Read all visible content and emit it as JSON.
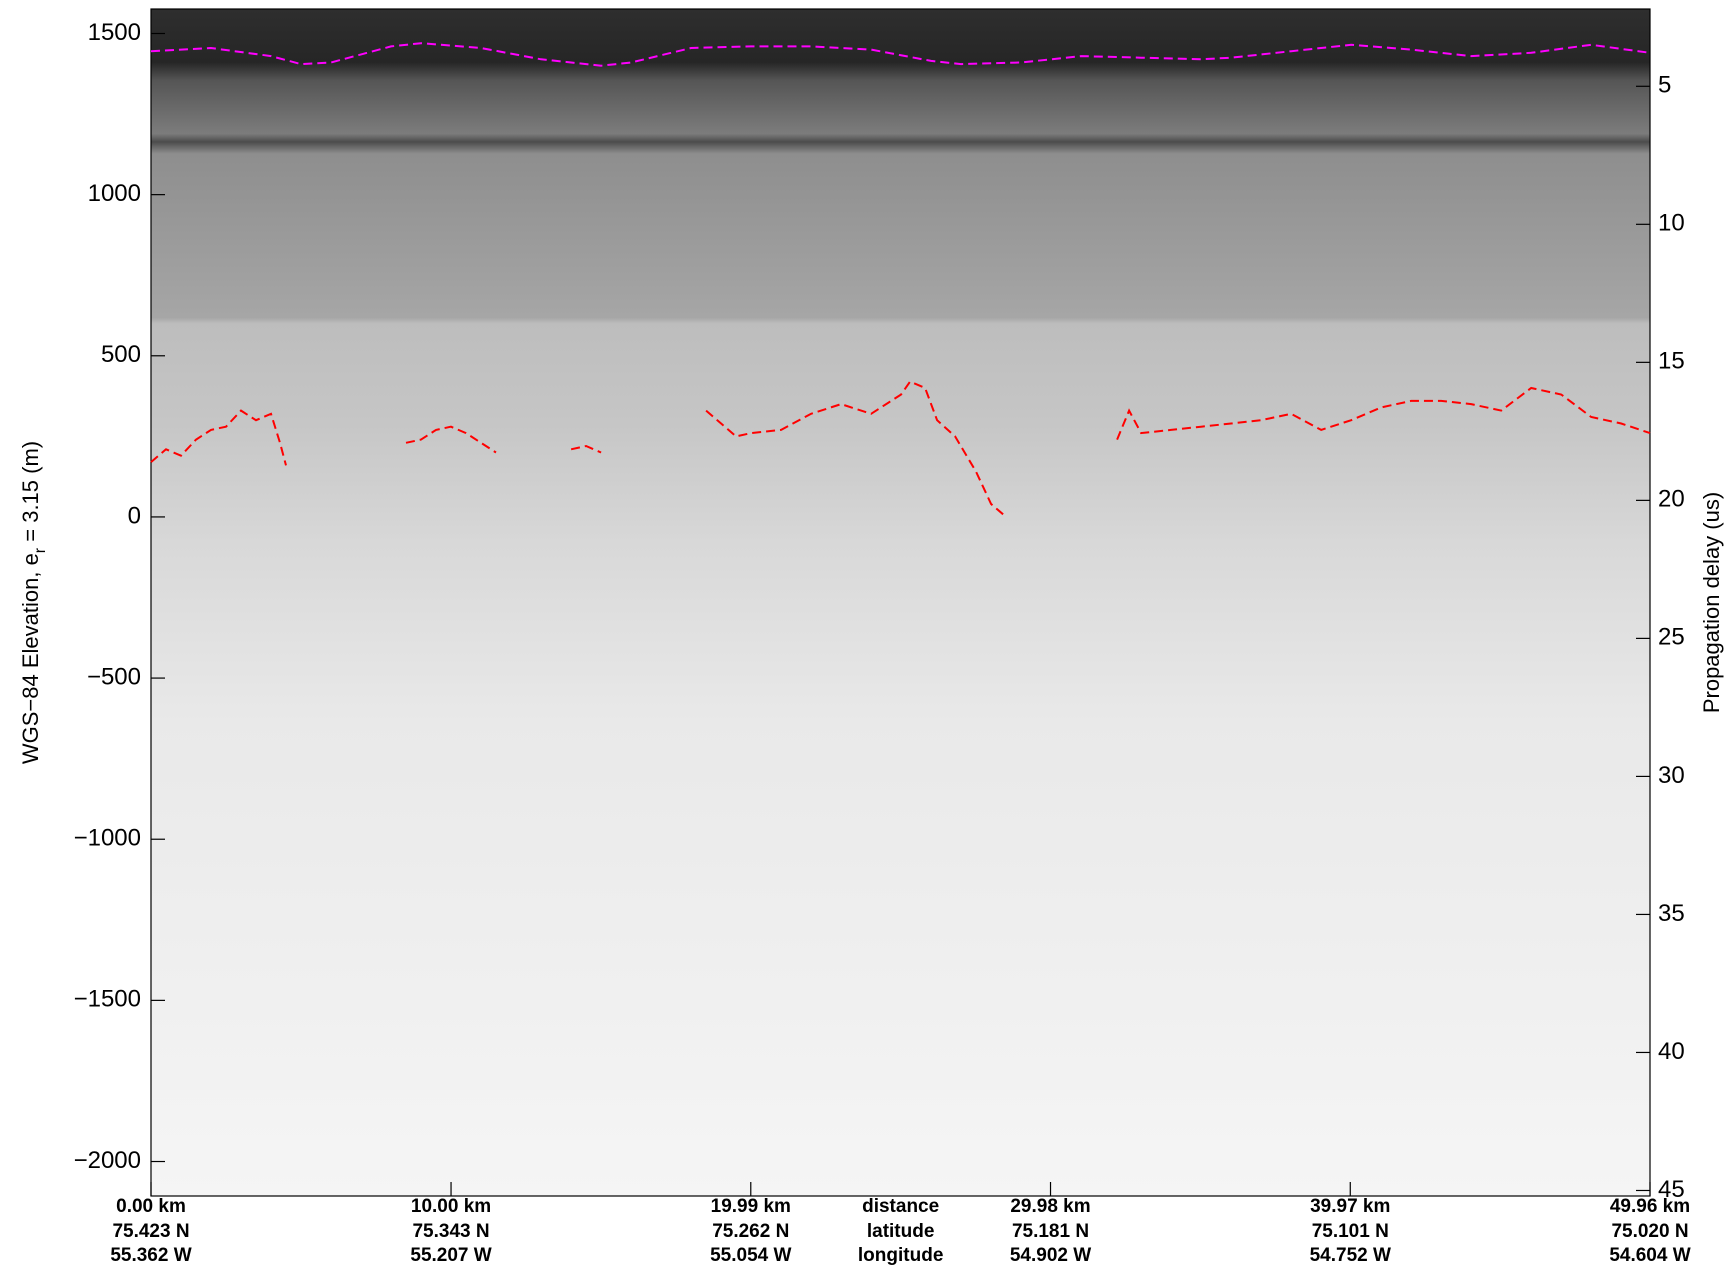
{
  "chart_data": {
    "type": "line",
    "ylabel": [
      "WGS−84 Elevation, e",
      "r",
      " = 3.15 (m)"
    ],
    "y2label": "Propagation delay (us)",
    "xlim": [
      0,
      49.96
    ],
    "ylim": [
      -2107,
      1576
    ],
    "y2lim": [
      2.2,
      45.2
    ],
    "xticks": [
      {
        "value": 0,
        "label": "0.00 km"
      },
      {
        "value": 10,
        "label": "10.00 km"
      },
      {
        "value": 19.99,
        "label": "19.99 km"
      },
      {
        "value": 29.98,
        "label": "29.98 km"
      },
      {
        "value": 39.97,
        "label": "39.97 km"
      },
      {
        "value": 49.96,
        "label": "49.96 km"
      }
    ],
    "xtick_latitude": [
      "75.423 N",
      "75.343 N",
      "75.262 N",
      "75.181 N",
      "75.101 N",
      "75.020 N"
    ],
    "xtick_longitude": [
      "55.362 W",
      "55.207 W",
      "55.054 W",
      "54.902 W",
      "54.752 W",
      "54.604 W"
    ],
    "xtick_row_labels": [
      "distance",
      "latitude",
      "longitude"
    ],
    "yticks": [
      {
        "value": -2000,
        "label": "−2000"
      },
      {
        "value": -1500,
        "label": "−1500"
      },
      {
        "value": -1000,
        "label": "−1000"
      },
      {
        "value": -500,
        "label": "−500"
      },
      0,
      500,
      1000,
      1500
    ],
    "y2ticks": [
      5,
      10,
      15,
      20,
      25,
      30,
      35,
      40,
      45
    ],
    "series": [
      {
        "color": "#ff00ff",
        "x": [
          0,
          2,
          4,
          5,
          6,
          8,
          9,
          11,
          13,
          15,
          16,
          18,
          20,
          22,
          24,
          26,
          27,
          29,
          31,
          33,
          35,
          36,
          38,
          40,
          42,
          44,
          46,
          48,
          49.96
        ],
        "values": [
          1445,
          1455,
          1430,
          1405,
          1410,
          1460,
          1470,
          1455,
          1420,
          1400,
          1410,
          1455,
          1460,
          1460,
          1450,
          1415,
          1405,
          1410,
          1430,
          1425,
          1420,
          1425,
          1445,
          1465,
          1450,
          1430,
          1440,
          1465,
          1440
        ]
      },
      {
        "color": "#ff0000",
        "x": [
          0,
          0.5,
          1,
          1.5,
          2,
          2.5,
          3,
          3.5,
          4,
          4.3,
          4.5,
          5,
          8.5,
          9,
          9.5,
          10,
          10.5,
          11,
          11.5,
          12,
          14,
          14.5,
          15,
          16,
          18.5,
          19,
          19.5,
          20,
          21,
          22,
          23,
          24,
          25,
          25.3,
          25.8,
          26.2,
          26.8,
          27.5,
          28,
          28.5,
          30,
          32.2,
          32.6,
          33,
          34,
          35,
          36,
          37,
          38,
          39,
          40,
          41,
          42,
          43,
          44,
          45,
          46,
          47,
          48,
          49,
          49.96
        ],
        "values": [
          170,
          210,
          190,
          240,
          270,
          280,
          330,
          300,
          320,
          230,
          160,
          null,
          230,
          240,
          270,
          280,
          260,
          230,
          200,
          null,
          210,
          220,
          200,
          null,
          330,
          290,
          250,
          260,
          270,
          320,
          350,
          320,
          380,
          420,
          400,
          300,
          250,
          140,
          40,
          0,
          null,
          240,
          330,
          260,
          270,
          280,
          290,
          300,
          320,
          270,
          300,
          340,
          360,
          360,
          350,
          330,
          400,
          380,
          310,
          290,
          260
        ]
      }
    ]
  }
}
